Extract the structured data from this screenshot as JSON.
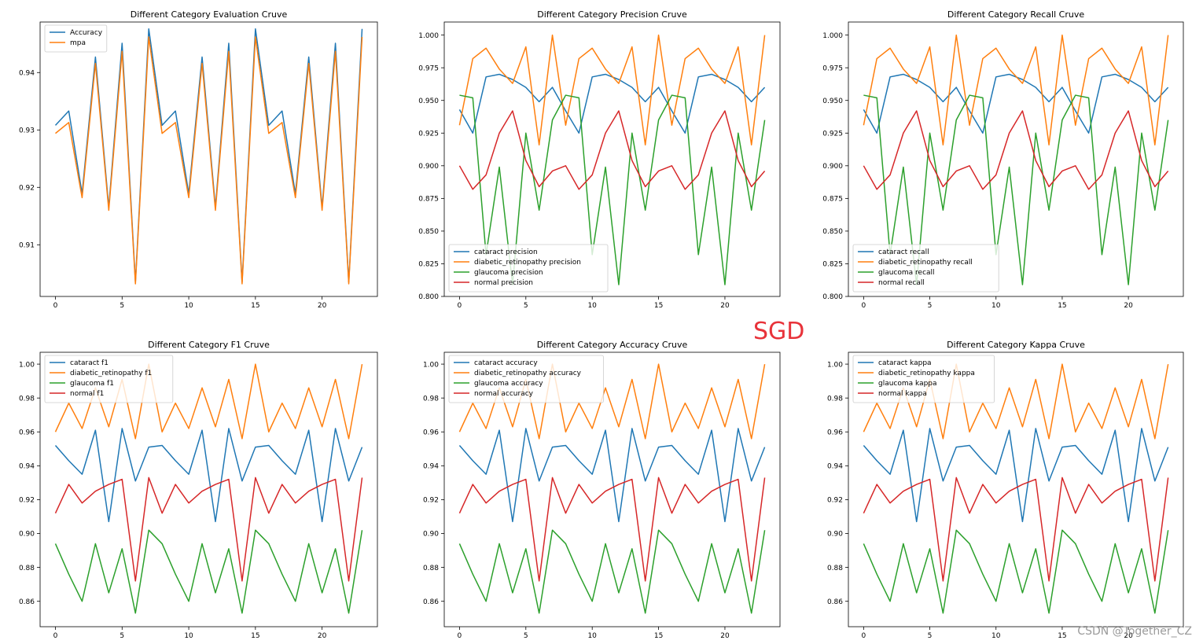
{
  "figure": {
    "optimizer_label": "SGD",
    "watermark": "CSDN @Together_CZ"
  },
  "colors": {
    "blue": "#1f77b4",
    "orange": "#ff7f0e",
    "green": "#2ca02c",
    "red": "#d62728",
    "sgd_label": "#e8333a"
  },
  "chart_data": [
    {
      "type": "line",
      "title": "Different Category Evaluation Cruve",
      "xlim": [
        -1.15,
        24.15
      ],
      "ylim": [
        0.901,
        0.9488
      ],
      "xticks": [
        0,
        5,
        10,
        15,
        20
      ],
      "xtick_labels": [
        "0",
        "5",
        "10",
        "15",
        "20"
      ],
      "yticks": [
        0.91,
        0.92,
        0.93,
        0.94
      ],
      "ytick_labels": [
        "0.91",
        "0.92",
        "0.93",
        "0.94"
      ],
      "legend_loc": "upper-left",
      "series": [
        {
          "name": "Accuracy",
          "color": "#1f77b4",
          "values": [
            0.9308,
            0.9333,
            0.9189,
            0.9427,
            0.9165,
            0.9451,
            0.9035,
            0.9476,
            0.9308,
            0.9333,
            0.9189,
            0.9427,
            0.9165,
            0.9451,
            0.9035,
            0.9476,
            0.9308,
            0.9333,
            0.9189,
            0.9427,
            0.9165,
            0.9451,
            0.9035,
            0.9476
          ]
        },
        {
          "name": "mpa",
          "color": "#ff7f0e",
          "values": [
            0.9294,
            0.9313,
            0.9182,
            0.9416,
            0.916,
            0.9437,
            0.9032,
            0.9462,
            0.9294,
            0.9313,
            0.9182,
            0.9416,
            0.916,
            0.9437,
            0.9032,
            0.9462,
            0.9294,
            0.9313,
            0.9182,
            0.9416,
            0.916,
            0.9437,
            0.9032,
            0.9462
          ]
        }
      ]
    },
    {
      "type": "line",
      "title": "Different Category Precision Cruve",
      "xlim": [
        -1.15,
        24.15
      ],
      "ylim": [
        0.8,
        1.01
      ],
      "xticks": [
        0,
        5,
        10,
        15,
        20
      ],
      "xtick_labels": [
        "0",
        "5",
        "10",
        "15",
        "20"
      ],
      "yticks": [
        0.8,
        0.825,
        0.85,
        0.875,
        0.9,
        0.925,
        0.95,
        0.975,
        1.0
      ],
      "ytick_labels": [
        "0.800",
        "0.825",
        "0.850",
        "0.875",
        "0.900",
        "0.925",
        "0.950",
        "0.975",
        "1.000"
      ],
      "legend_loc": "lower-left",
      "series": [
        {
          "name": "cataract precision",
          "color": "#1f77b4",
          "values": [
            0.943,
            0.925,
            0.968,
            0.97,
            0.966,
            0.96,
            0.949,
            0.96,
            0.942,
            0.925,
            0.968,
            0.97,
            0.966,
            0.96,
            0.949,
            0.96,
            0.942,
            0.925,
            0.968,
            0.97,
            0.966,
            0.96,
            0.949,
            0.96
          ]
        },
        {
          "name": "diabetic_retinopathy precision",
          "color": "#ff7f0e",
          "values": [
            0.931,
            0.982,
            0.99,
            0.974,
            0.963,
            0.991,
            0.916,
            1.0,
            0.931,
            0.982,
            0.99,
            0.974,
            0.963,
            0.991,
            0.916,
            1.0,
            0.931,
            0.982,
            0.99,
            0.974,
            0.963,
            0.991,
            0.916,
            1.0
          ]
        },
        {
          "name": "glaucoma precision",
          "color": "#2ca02c",
          "values": [
            0.954,
            0.952,
            0.832,
            0.899,
            0.809,
            0.925,
            0.866,
            0.935,
            0.954,
            0.952,
            0.832,
            0.899,
            0.809,
            0.925,
            0.866,
            0.935,
            0.954,
            0.952,
            0.832,
            0.899,
            0.809,
            0.925,
            0.866,
            0.935
          ]
        },
        {
          "name": "normal precision",
          "color": "#d62728",
          "values": [
            0.9,
            0.882,
            0.893,
            0.925,
            0.942,
            0.904,
            0.884,
            0.896,
            0.9,
            0.882,
            0.893,
            0.925,
            0.942,
            0.904,
            0.884,
            0.896,
            0.9,
            0.882,
            0.893,
            0.925,
            0.942,
            0.904,
            0.884,
            0.896
          ]
        }
      ]
    },
    {
      "type": "line",
      "title": "Different Category Recall Cruve",
      "xlim": [
        -1.15,
        24.15
      ],
      "ylim": [
        0.8,
        1.01
      ],
      "xticks": [
        0,
        5,
        10,
        15,
        20
      ],
      "xtick_labels": [
        "0",
        "5",
        "10",
        "15",
        "20"
      ],
      "yticks": [
        0.8,
        0.825,
        0.85,
        0.875,
        0.9,
        0.925,
        0.95,
        0.975,
        1.0
      ],
      "ytick_labels": [
        "0.800",
        "0.825",
        "0.850",
        "0.875",
        "0.900",
        "0.925",
        "0.950",
        "0.975",
        "1.000"
      ],
      "legend_loc": "lower-left",
      "series": [
        {
          "name": "cataract recall",
          "color": "#1f77b4",
          "values": [
            0.943,
            0.925,
            0.968,
            0.97,
            0.966,
            0.96,
            0.949,
            0.96,
            0.942,
            0.925,
            0.968,
            0.97,
            0.966,
            0.96,
            0.949,
            0.96,
            0.942,
            0.925,
            0.968,
            0.97,
            0.966,
            0.96,
            0.949,
            0.96
          ]
        },
        {
          "name": "diabetic_retinopathy recall",
          "color": "#ff7f0e",
          "values": [
            0.931,
            0.982,
            0.99,
            0.974,
            0.963,
            0.991,
            0.916,
            1.0,
            0.931,
            0.982,
            0.99,
            0.974,
            0.963,
            0.991,
            0.916,
            1.0,
            0.931,
            0.982,
            0.99,
            0.974,
            0.963,
            0.991,
            0.916,
            1.0
          ]
        },
        {
          "name": "glaucoma recall",
          "color": "#2ca02c",
          "values": [
            0.954,
            0.952,
            0.832,
            0.899,
            0.809,
            0.925,
            0.866,
            0.935,
            0.954,
            0.952,
            0.832,
            0.899,
            0.809,
            0.925,
            0.866,
            0.935,
            0.954,
            0.952,
            0.832,
            0.899,
            0.809,
            0.925,
            0.866,
            0.935
          ]
        },
        {
          "name": "normal recall",
          "color": "#d62728",
          "values": [
            0.9,
            0.882,
            0.893,
            0.925,
            0.942,
            0.904,
            0.884,
            0.896,
            0.9,
            0.882,
            0.893,
            0.925,
            0.942,
            0.904,
            0.884,
            0.896,
            0.9,
            0.882,
            0.893,
            0.925,
            0.942,
            0.904,
            0.884,
            0.896
          ]
        }
      ]
    },
    {
      "type": "line",
      "title": "Different Category F1 Cruve",
      "xlim": [
        -1.15,
        24.15
      ],
      "ylim": [
        0.845,
        1.007
      ],
      "xticks": [
        0,
        5,
        10,
        15,
        20
      ],
      "xtick_labels": [
        "0",
        "5",
        "10",
        "15",
        "20"
      ],
      "yticks": [
        0.86,
        0.88,
        0.9,
        0.92,
        0.94,
        0.96,
        0.98,
        1.0
      ],
      "ytick_labels": [
        "0.86",
        "0.88",
        "0.90",
        "0.92",
        "0.94",
        "0.96",
        "0.98",
        "1.00"
      ],
      "legend_loc": "upper-left",
      "series": [
        {
          "name": "cataract f1",
          "color": "#1f77b4",
          "values": [
            0.952,
            0.943,
            0.935,
            0.961,
            0.907,
            0.962,
            0.931,
            0.951,
            0.952,
            0.943,
            0.935,
            0.961,
            0.907,
            0.962,
            0.931,
            0.951,
            0.952,
            0.943,
            0.935,
            0.961,
            0.907,
            0.962,
            0.931,
            0.951
          ]
        },
        {
          "name": "diabetic_retinopathy f1",
          "color": "#ff7f0e",
          "values": [
            0.96,
            0.977,
            0.962,
            0.986,
            0.963,
            0.991,
            0.956,
            1.0,
            0.96,
            0.977,
            0.962,
            0.986,
            0.963,
            0.991,
            0.956,
            1.0,
            0.96,
            0.977,
            0.962,
            0.986,
            0.963,
            0.991,
            0.956,
            1.0
          ]
        },
        {
          "name": "glaucoma f1",
          "color": "#2ca02c",
          "values": [
            0.894,
            0.876,
            0.86,
            0.894,
            0.865,
            0.891,
            0.853,
            0.902,
            0.894,
            0.876,
            0.86,
            0.894,
            0.865,
            0.891,
            0.853,
            0.902,
            0.894,
            0.876,
            0.86,
            0.894,
            0.865,
            0.891,
            0.853,
            0.902
          ]
        },
        {
          "name": "normal f1",
          "color": "#d62728",
          "values": [
            0.912,
            0.929,
            0.918,
            0.925,
            0.929,
            0.932,
            0.872,
            0.933,
            0.912,
            0.929,
            0.918,
            0.925,
            0.929,
            0.932,
            0.872,
            0.933,
            0.912,
            0.929,
            0.918,
            0.925,
            0.929,
            0.932,
            0.872,
            0.933
          ]
        }
      ]
    },
    {
      "type": "line",
      "title": "Different Category Accuracy Cruve",
      "xlim": [
        -1.15,
        24.15
      ],
      "ylim": [
        0.845,
        1.007
      ],
      "xticks": [
        0,
        5,
        10,
        15,
        20
      ],
      "xtick_labels": [
        "0",
        "5",
        "10",
        "15",
        "20"
      ],
      "yticks": [
        0.86,
        0.88,
        0.9,
        0.92,
        0.94,
        0.96,
        0.98,
        1.0
      ],
      "ytick_labels": [
        "0.86",
        "0.88",
        "0.90",
        "0.92",
        "0.94",
        "0.96",
        "0.98",
        "1.00"
      ],
      "legend_loc": "upper-left",
      "series": [
        {
          "name": "cataract accuracy",
          "color": "#1f77b4",
          "values": [
            0.952,
            0.943,
            0.935,
            0.961,
            0.907,
            0.962,
            0.931,
            0.951,
            0.952,
            0.943,
            0.935,
            0.961,
            0.907,
            0.962,
            0.931,
            0.951,
            0.952,
            0.943,
            0.935,
            0.961,
            0.907,
            0.962,
            0.931,
            0.951
          ]
        },
        {
          "name": "diabetic_retinopathy accuracy",
          "color": "#ff7f0e",
          "values": [
            0.96,
            0.977,
            0.962,
            0.986,
            0.963,
            0.991,
            0.956,
            1.0,
            0.96,
            0.977,
            0.962,
            0.986,
            0.963,
            0.991,
            0.956,
            1.0,
            0.96,
            0.977,
            0.962,
            0.986,
            0.963,
            0.991,
            0.956,
            1.0
          ]
        },
        {
          "name": "glaucoma accuracy",
          "color": "#2ca02c",
          "values": [
            0.894,
            0.876,
            0.86,
            0.894,
            0.865,
            0.891,
            0.853,
            0.902,
            0.894,
            0.876,
            0.86,
            0.894,
            0.865,
            0.891,
            0.853,
            0.902,
            0.894,
            0.876,
            0.86,
            0.894,
            0.865,
            0.891,
            0.853,
            0.902
          ]
        },
        {
          "name": "normal accuracy",
          "color": "#d62728",
          "values": [
            0.912,
            0.929,
            0.918,
            0.925,
            0.929,
            0.932,
            0.872,
            0.933,
            0.912,
            0.929,
            0.918,
            0.925,
            0.929,
            0.932,
            0.872,
            0.933,
            0.912,
            0.929,
            0.918,
            0.925,
            0.929,
            0.932,
            0.872,
            0.933
          ]
        }
      ]
    },
    {
      "type": "line",
      "title": "Different Category Kappa Cruve",
      "xlim": [
        -1.15,
        24.15
      ],
      "ylim": [
        0.845,
        1.007
      ],
      "xticks": [
        0,
        5,
        10,
        15,
        20
      ],
      "xtick_labels": [
        "0",
        "5",
        "10",
        "15",
        "20"
      ],
      "yticks": [
        0.86,
        0.88,
        0.9,
        0.92,
        0.94,
        0.96,
        0.98,
        1.0
      ],
      "ytick_labels": [
        "0.86",
        "0.88",
        "0.90",
        "0.92",
        "0.94",
        "0.96",
        "0.98",
        "1.00"
      ],
      "legend_loc": "upper-left",
      "series": [
        {
          "name": "cataract kappa",
          "color": "#1f77b4",
          "values": [
            0.952,
            0.943,
            0.935,
            0.961,
            0.907,
            0.962,
            0.931,
            0.951,
            0.952,
            0.943,
            0.935,
            0.961,
            0.907,
            0.962,
            0.931,
            0.951,
            0.952,
            0.943,
            0.935,
            0.961,
            0.907,
            0.962,
            0.931,
            0.951
          ]
        },
        {
          "name": "diabetic_retinopathy kappa",
          "color": "#ff7f0e",
          "values": [
            0.96,
            0.977,
            0.962,
            0.986,
            0.963,
            0.991,
            0.956,
            1.0,
            0.96,
            0.977,
            0.962,
            0.986,
            0.963,
            0.991,
            0.956,
            1.0,
            0.96,
            0.977,
            0.962,
            0.986,
            0.963,
            0.991,
            0.956,
            1.0
          ]
        },
        {
          "name": "glaucoma kappa",
          "color": "#2ca02c",
          "values": [
            0.894,
            0.876,
            0.86,
            0.894,
            0.865,
            0.891,
            0.853,
            0.902,
            0.894,
            0.876,
            0.86,
            0.894,
            0.865,
            0.891,
            0.853,
            0.902,
            0.894,
            0.876,
            0.86,
            0.894,
            0.865,
            0.891,
            0.853,
            0.902
          ]
        },
        {
          "name": "normal kappa",
          "color": "#d62728",
          "values": [
            0.912,
            0.929,
            0.918,
            0.925,
            0.929,
            0.932,
            0.872,
            0.933,
            0.912,
            0.929,
            0.918,
            0.925,
            0.929,
            0.932,
            0.872,
            0.933,
            0.912,
            0.929,
            0.918,
            0.925,
            0.929,
            0.932,
            0.872,
            0.933
          ]
        }
      ]
    }
  ]
}
